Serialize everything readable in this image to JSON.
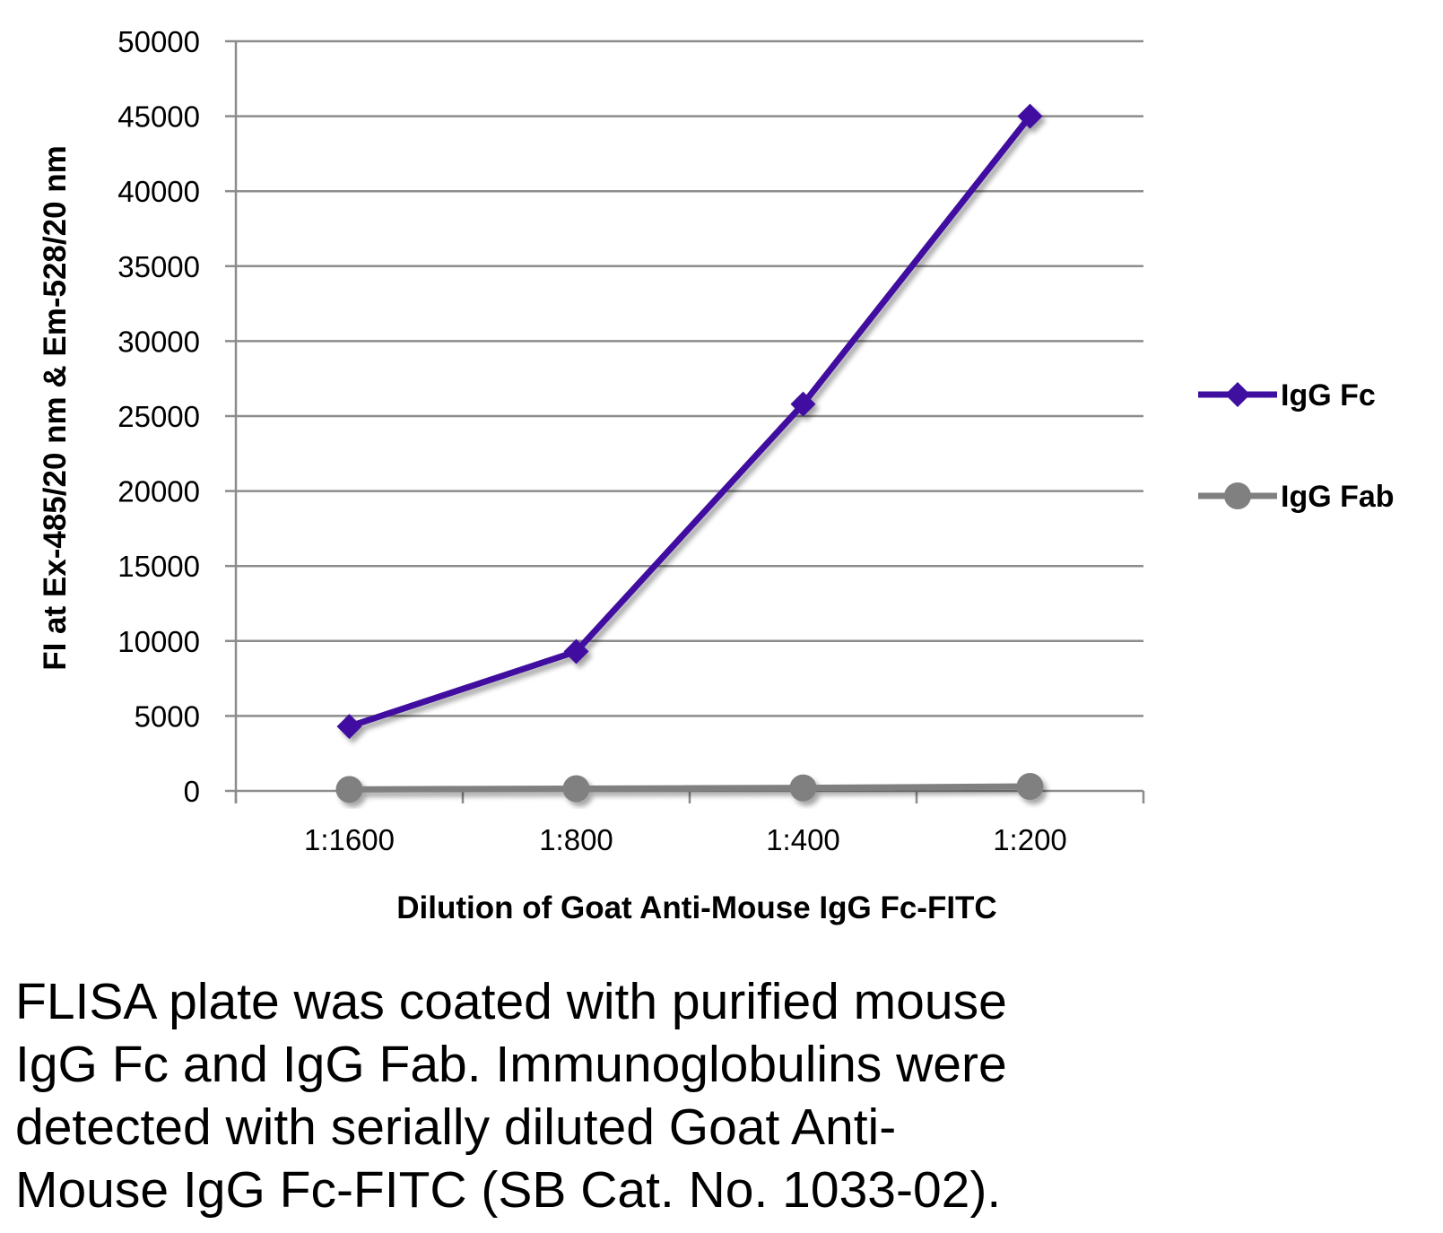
{
  "chart_data": {
    "type": "line",
    "title": "",
    "xlabel": "Dilution of Goat Anti-Mouse IgG Fc-FITC",
    "ylabel": "FI at Ex-485/20 nm & Em-528/20 nm",
    "categories": [
      "1:1600",
      "1:800",
      "1:400",
      "1:200"
    ],
    "ylim": [
      0,
      50000
    ],
    "yticks": [
      0,
      5000,
      10000,
      15000,
      20000,
      25000,
      30000,
      35000,
      40000,
      45000,
      50000
    ],
    "ytick_labels": [
      "0",
      "5000",
      "10000",
      "15000",
      "20000",
      "25000",
      "30000",
      "35000",
      "40000",
      "45000",
      "50000"
    ],
    "grid": true,
    "legend_position": "right",
    "series": [
      {
        "name": "IgG Fc",
        "values": [
          4300,
          9300,
          25800,
          45000
        ],
        "color": "#3F0FA0",
        "marker": "diamond"
      },
      {
        "name": "IgG Fab",
        "values": [
          100,
          150,
          200,
          300
        ],
        "color": "#808080",
        "marker": "circle"
      }
    ]
  },
  "caption": {
    "lines": [
      "FLISA plate was coated with purified mouse",
      "IgG Fc and IgG Fab.  Immunoglobulins were",
      "detected with serially diluted Goat Anti-",
      "Mouse IgG Fc-FITC (SB Cat. No. 1033-02)."
    ]
  }
}
